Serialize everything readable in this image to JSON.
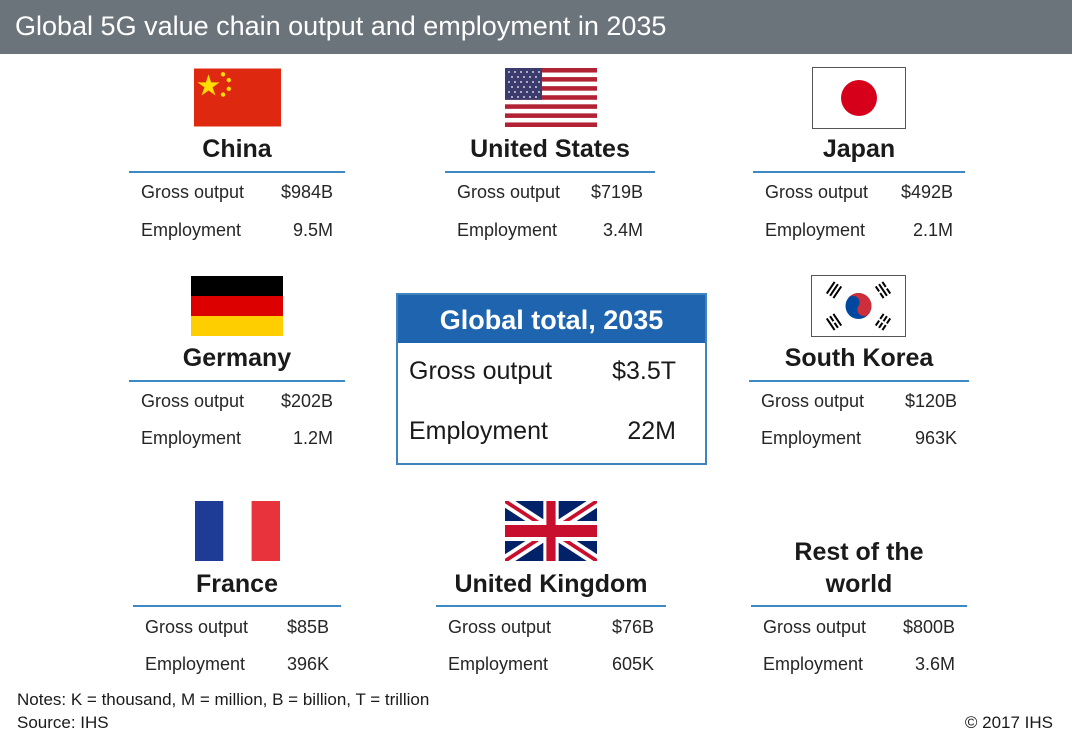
{
  "header": {
    "title": "Global 5G value chain output and employment in 2035"
  },
  "row_labels": {
    "gross": "Gross output",
    "employment": "Employment"
  },
  "countries": {
    "china": {
      "name": "China",
      "gross_output": "$984B",
      "employment": "9.5M",
      "flag_icon": "china-flag-icon"
    },
    "united_states": {
      "name": "United States",
      "gross_output": "$719B",
      "employment": "3.4M",
      "flag_icon": "united-states-flag-icon"
    },
    "japan": {
      "name": "Japan",
      "gross_output": "$492B",
      "employment": "2.1M",
      "flag_icon": "japan-flag-icon"
    },
    "germany": {
      "name": "Germany",
      "gross_output": "$202B",
      "employment": "1.2M",
      "flag_icon": "germany-flag-icon"
    },
    "south_korea": {
      "name": "South Korea",
      "gross_output": "$120B",
      "employment": "963K",
      "flag_icon": "south-korea-flag-icon"
    },
    "france": {
      "name": "France",
      "gross_output": "$85B",
      "employment": "396K",
      "flag_icon": "france-flag-icon"
    },
    "united_kingdom": {
      "name": "United Kingdom",
      "gross_output": "$76B",
      "employment": "605K",
      "flag_icon": "united-kingdom-flag-icon"
    },
    "rest_of_world": {
      "name_line1": "Rest of the",
      "name_line2": "world",
      "gross_output": "$800B",
      "employment": "3.6M"
    }
  },
  "global_total": {
    "title": "Global total, 2035",
    "gross_label": "Gross output",
    "gross_output": "$3.5T",
    "employment_label": "Employment",
    "employment": "22M"
  },
  "footer": {
    "notes": "Notes: K = thousand, M = million, B = billion, T = trillion",
    "source": "Source: IHS",
    "copyright": "© 2017 IHS"
  },
  "colors": {
    "header_bg": "#6b737b",
    "accent_blue": "#1e64ae",
    "rule_blue": "#3d89c3"
  }
}
